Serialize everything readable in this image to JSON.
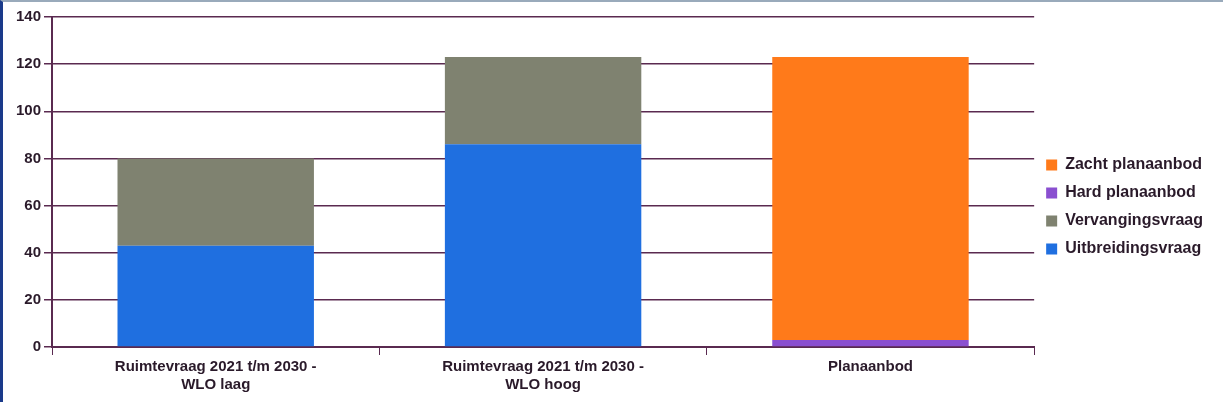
{
  "chart_data": {
    "type": "bar",
    "stacked": true,
    "categories": [
      "Ruimtevraag 2021 t/m 2030 - WLO laag",
      "Ruimtevraag 2021 t/m 2030 - WLO hoog",
      "Planaanbod"
    ],
    "series": [
      {
        "name": "Uitbreidingsvraag",
        "color": "#1f6fe0",
        "values": [
          43,
          86,
          0
        ]
      },
      {
        "name": "Vervangingsvraag",
        "color": "#7f8270",
        "values": [
          37,
          37,
          0
        ]
      },
      {
        "name": "Hard planaanbod",
        "color": "#8a4fd0",
        "values": [
          0,
          0,
          3
        ]
      },
      {
        "name": "Zacht planaanbod",
        "color": "#ff7a1a",
        "values": [
          0,
          0,
          120
        ]
      }
    ],
    "ylim": [
      0,
      140
    ],
    "yticks": [
      0,
      20,
      40,
      60,
      80,
      100,
      120,
      140
    ],
    "grid": "y",
    "legend": "right"
  }
}
